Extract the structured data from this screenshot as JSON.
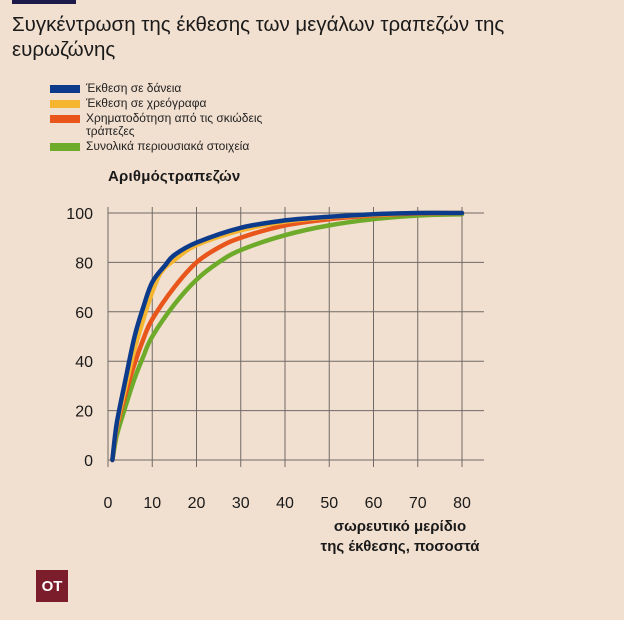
{
  "title": "Συγκέντρωση της έκθεσης των μεγάλων τραπεζών της ευρωζώνης",
  "logo_text": "OT",
  "chart_data": {
    "type": "line",
    "ylabel": "Αριθμόςτραπεζών",
    "xlabel_lines": [
      "σωρευτικό μερίδιο",
      "της έκθεσης, ποσοστά"
    ],
    "xlim": [
      0,
      80
    ],
    "ylim": [
      0,
      100
    ],
    "x_ticks": [
      0,
      10,
      20,
      30,
      40,
      50,
      60,
      70,
      80
    ],
    "y_ticks": [
      0,
      20,
      40,
      60,
      80,
      100
    ],
    "grid": true,
    "legend_position": "top-left",
    "series": [
      {
        "name": "Έκθεση σε δάνεια",
        "color": "#0d3b8c",
        "points": [
          [
            1,
            0
          ],
          [
            2,
            15
          ],
          [
            4,
            33
          ],
          [
            6,
            50
          ],
          [
            8,
            62
          ],
          [
            10,
            72
          ],
          [
            13,
            79
          ],
          [
            15,
            83
          ],
          [
            20,
            88
          ],
          [
            30,
            94
          ],
          [
            40,
            97
          ],
          [
            50,
            98.5
          ],
          [
            60,
            99.5
          ],
          [
            70,
            100
          ],
          [
            80,
            100
          ]
        ]
      },
      {
        "name": "Έκθεση σε χρεόγραφα",
        "color": "#f5b52e",
        "points": [
          [
            1,
            0
          ],
          [
            2,
            14
          ],
          [
            4,
            30
          ],
          [
            6,
            45
          ],
          [
            8,
            57
          ],
          [
            10,
            68
          ],
          [
            12,
            76
          ],
          [
            15,
            81
          ],
          [
            20,
            87
          ],
          [
            30,
            93
          ],
          [
            40,
            96.5
          ],
          [
            50,
            98.3
          ],
          [
            60,
            99.3
          ],
          [
            70,
            100
          ],
          [
            80,
            100
          ]
        ]
      },
      {
        "name": "Χρηματοδότηση από τις σκιώδεις τράπεζες",
        "color": "#e9561c",
        "points": [
          [
            1,
            0
          ],
          [
            2,
            13
          ],
          [
            4,
            27
          ],
          [
            6,
            39
          ],
          [
            8,
            49
          ],
          [
            10,
            57
          ],
          [
            15,
            70
          ],
          [
            20,
            80
          ],
          [
            25,
            86
          ],
          [
            30,
            90
          ],
          [
            40,
            95
          ],
          [
            50,
            97.5
          ],
          [
            60,
            99
          ],
          [
            70,
            99.8
          ],
          [
            80,
            100
          ]
        ]
      },
      {
        "name": "Συνολικά περιουσιακά στοιχεία",
        "color": "#6eab2b",
        "points": [
          [
            1,
            0
          ],
          [
            2,
            10
          ],
          [
            4,
            22
          ],
          [
            6,
            33
          ],
          [
            8,
            42
          ],
          [
            10,
            50
          ],
          [
            15,
            63
          ],
          [
            20,
            73
          ],
          [
            25,
            80
          ],
          [
            30,
            85
          ],
          [
            40,
            91
          ],
          [
            50,
            95
          ],
          [
            60,
            97.5
          ],
          [
            70,
            99
          ],
          [
            80,
            99.5
          ]
        ]
      }
    ]
  }
}
